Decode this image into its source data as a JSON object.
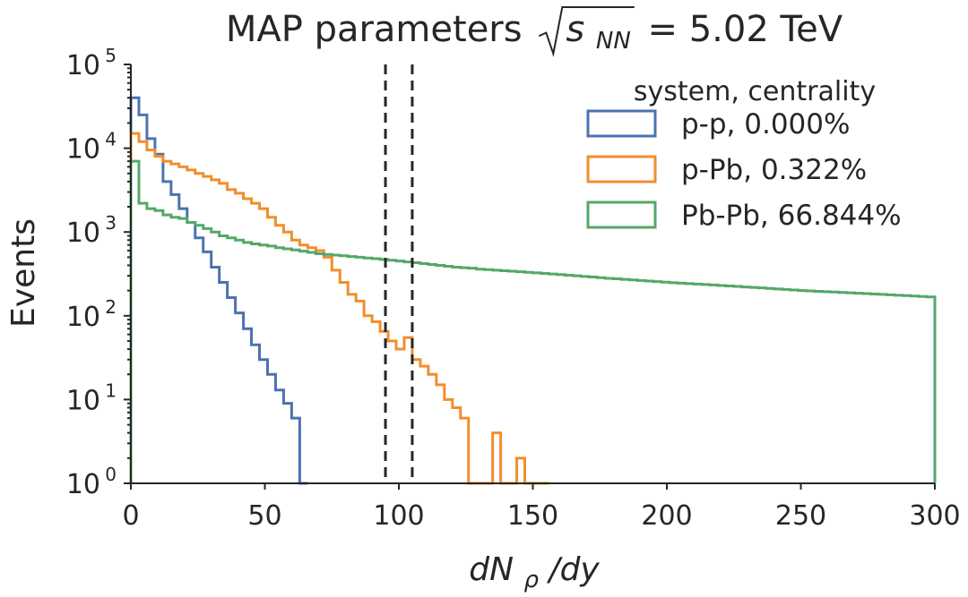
{
  "chart_data": {
    "type": "histogram",
    "title": "MAP parameters",
    "title_formula": {
      "sqrt_arg": "s",
      "subscript": "NN",
      "equals": "= 5.02 TeV"
    },
    "xlabel": {
      "main_1": "dN",
      "subscript": "ρ",
      "main_2": "/dy"
    },
    "ylabel": "Events",
    "xlim": [
      0,
      300
    ],
    "ylim": [
      1,
      100000
    ],
    "yscale": "log",
    "bin_width": 3,
    "x_ticks": [
      0,
      50,
      100,
      150,
      200,
      250,
      300
    ],
    "y_ticks": [
      {
        "value": 1,
        "base": "10",
        "exp": "0"
      },
      {
        "value": 10,
        "base": "10",
        "exp": "1"
      },
      {
        "value": 100,
        "base": "10",
        "exp": "2"
      },
      {
        "value": 1000,
        "base": "10",
        "exp": "3"
      },
      {
        "value": 10000,
        "base": "10",
        "exp": "4"
      },
      {
        "value": 100000,
        "base": "10",
        "exp": "5"
      }
    ],
    "vlines": [
      95,
      105
    ],
    "vline_style": "dashed",
    "grid": false,
    "legend_placement": "top-right",
    "legend_title": "system, centrality",
    "series": [
      {
        "name": "p-p, 0.000%",
        "color": "#4c72b0",
        "values": [
          40000,
          25000,
          13000,
          8500,
          4000,
          2800,
          1900,
          1300,
          850,
          580,
          380,
          250,
          165,
          108,
          70,
          45,
          30,
          20,
          13,
          9,
          6,
          0
        ]
      },
      {
        "name": "p-Pb, 0.322%",
        "color": "#f28e2b",
        "values": [
          15000,
          12000,
          9500,
          8000,
          7000,
          6500,
          6000,
          5500,
          5000,
          4600,
          4200,
          3800,
          3200,
          2900,
          2500,
          2200,
          1900,
          1500,
          1200,
          1000,
          800,
          700,
          650,
          600,
          500,
          350,
          250,
          180,
          150,
          100,
          85,
          65,
          50,
          40,
          55,
          30,
          25,
          20,
          15,
          10,
          8,
          6,
          1,
          1,
          0,
          4,
          1,
          0,
          2,
          0,
          0,
          0
        ]
      },
      {
        "name": "Pb-Pb, 66.844%",
        "color": "#55a868",
        "values": [
          7000,
          2200,
          1900,
          1800,
          1600,
          1500,
          1450,
          1300,
          1200,
          1100,
          1000,
          900,
          850,
          800,
          750,
          720,
          700,
          680,
          650,
          630,
          610,
          590,
          570,
          550,
          540,
          530,
          520,
          510,
          500,
          490,
          480,
          470,
          460,
          450,
          440,
          430,
          420,
          410,
          400,
          390,
          380,
          375,
          370,
          360,
          355,
          350,
          345,
          340,
          335,
          330,
          325,
          320,
          315,
          310,
          305,
          300,
          295,
          290,
          285,
          280,
          276,
          272,
          268,
          264,
          260,
          256,
          252,
          248,
          245,
          242,
          239,
          236,
          233,
          230,
          227,
          224,
          221,
          218,
          215,
          212,
          209,
          206,
          203,
          200,
          198,
          196,
          194,
          192,
          190,
          188,
          186,
          184,
          182,
          180,
          178,
          176,
          174,
          172,
          170,
          168
        ]
      }
    ]
  }
}
